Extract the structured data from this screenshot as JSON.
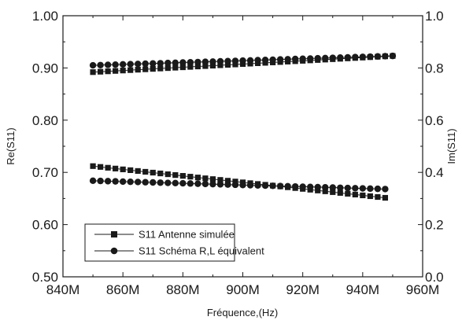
{
  "chart_data": {
    "type": "line",
    "xlabel": "Fréquence,(Hz)",
    "ylabel_left": "Re(S11)",
    "ylabel_right": "Im(S11)",
    "xlim": [
      840,
      960
    ],
    "x_unit": "M",
    "x_ticks": [
      "840M",
      "860M",
      "880M",
      "900M",
      "920M",
      "940M",
      "960M"
    ],
    "ylim_left": [
      0.5,
      1.0
    ],
    "y_ticks_left": [
      "0.50",
      "0.60",
      "0.70",
      "0.80",
      "0.90",
      "1.00"
    ],
    "ylim_right": [
      0.0,
      1.0
    ],
    "y_ticks_right": [
      "0.0",
      "0.2",
      "0.4",
      "0.6",
      "0.8",
      "1.0"
    ],
    "grid": false,
    "legend_position": "bottom-left",
    "series": [
      {
        "name": "S11 Antenne simulée",
        "marker": "square",
        "traces": [
          {
            "axis": "left",
            "x": [
              850,
              950
            ],
            "y": [
              0.892,
              0.923
            ]
          },
          {
            "axis": "left",
            "x": [
              850,
              948
            ],
            "y": [
              0.712,
              0.651
            ]
          }
        ]
      },
      {
        "name": "S11 Schéma R,L équivalent",
        "marker": "circle",
        "traces": [
          {
            "axis": "left",
            "x": [
              850,
              950
            ],
            "y": [
              0.905,
              0.923
            ]
          },
          {
            "axis": "left",
            "x": [
              850,
              948
            ],
            "y": [
              0.684,
              0.668
            ]
          }
        ]
      }
    ]
  }
}
